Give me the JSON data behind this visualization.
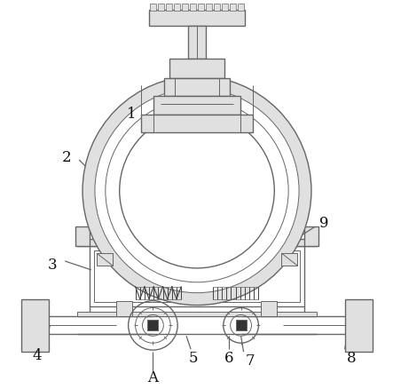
{
  "bg_color": "#ffffff",
  "line_color": "#666666",
  "dark_line": "#444444",
  "fill_light": "#e0e0e0",
  "fill_medium": "#cccccc",
  "black_fill": "#333333",
  "label_color": "#111111",
  "label_fontsize": 12,
  "figsize": [
    4.43,
    4.38
  ],
  "dpi": 100
}
